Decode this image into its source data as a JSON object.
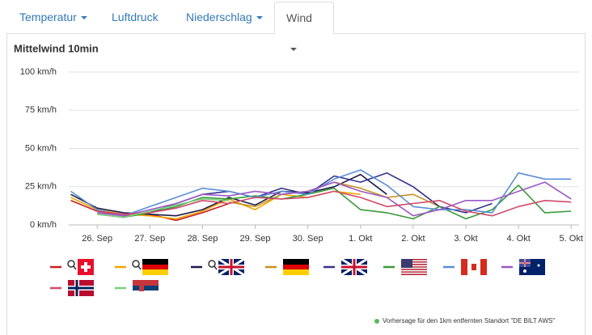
{
  "tabs": [
    "Temperatur",
    "Luftdruck",
    "Niederschlag",
    "Wind"
  ],
  "chart_data": {
    "type": "line",
    "title": "Mittelwind 10min",
    "note": "Vorhersage für den 1km entfernten Standort \"DE BILT AWS\"",
    "x": [
      -0.5,
      0,
      0.5,
      1,
      1.5,
      2,
      2.5,
      3,
      3.5,
      4,
      4.5,
      5,
      5.5,
      6,
      6.5,
      7,
      7.5,
      8,
      8.5,
      9
    ],
    "xlim": [
      -0.54,
      9.15
    ],
    "xticks": [
      {
        "value": 0,
        "label": "26. Sep"
      },
      {
        "value": 1,
        "label": "27. Sep"
      },
      {
        "value": 2,
        "label": "28. Sep"
      },
      {
        "value": 3,
        "label": "29. Sep"
      },
      {
        "value": 4,
        "label": "30. Sep"
      },
      {
        "value": 5,
        "label": "1. Okt"
      },
      {
        "value": 6,
        "label": "2. Okt"
      },
      {
        "value": 7,
        "label": "3. Okt"
      },
      {
        "value": 8,
        "label": "4. Okt"
      },
      {
        "value": 9,
        "label": "5. Okt"
      }
    ],
    "ylim": [
      0,
      100
    ],
    "yticks": [
      {
        "value": 0,
        "label": "0 km/h"
      },
      {
        "value": 25,
        "label": "25 km/h"
      },
      {
        "value": 50,
        "label": "50 km/h"
      },
      {
        "value": 75,
        "label": "75 km/h"
      },
      {
        "value": 100,
        "label": "100 km/h"
      }
    ],
    "grid": true,
    "series": [
      {
        "color": "#cc1f1f",
        "values": [
          16,
          9,
          6,
          7,
          3,
          8,
          14,
          null,
          null,
          null,
          null,
          null,
          null,
          null,
          null,
          null,
          null,
          null,
          null,
          null
        ]
      },
      {
        "color": "#f0a500",
        "values": [
          18,
          10,
          7,
          6,
          4,
          9,
          17,
          10,
          20,
          18,
          22,
          20,
          null,
          null,
          null,
          null,
          null,
          null,
          null,
          null
        ]
      },
      {
        "color": "#1c1c4a",
        "values": [
          20,
          11,
          8,
          7,
          6,
          10,
          18,
          13,
          22,
          21,
          25,
          33,
          20,
          null,
          null,
          null,
          null,
          null,
          null,
          null
        ]
      },
      {
        "color": "#c8901e",
        "values": [
          null,
          null,
          null,
          null,
          null,
          null,
          15,
          12,
          20,
          22,
          28,
          24,
          18,
          20,
          12,
          null,
          null,
          null,
          null,
          null
        ]
      },
      {
        "color": "#33338f",
        "values": [
          null,
          null,
          null,
          8,
          14,
          20,
          22,
          18,
          24,
          20,
          32,
          28,
          34,
          25,
          12,
          8,
          14,
          null,
          null,
          null
        ]
      },
      {
        "color": "#3a9a3a",
        "values": [
          null,
          7,
          5,
          8,
          12,
          18,
          17,
          19,
          17,
          20,
          24,
          10,
          8,
          4,
          12,
          4,
          10,
          26,
          8,
          9
        ]
      },
      {
        "color": "#5b8fd6",
        "values": [
          22,
          10,
          6,
          12,
          18,
          24,
          22,
          18,
          22,
          20,
          30,
          36,
          26,
          12,
          10,
          10,
          8,
          34,
          30,
          30
        ]
      },
      {
        "color": "#9b59c6",
        "values": [
          null,
          8,
          6,
          10,
          14,
          20,
          19,
          22,
          20,
          22,
          28,
          22,
          18,
          6,
          10,
          16,
          16,
          22,
          28,
          17
        ]
      },
      {
        "color": "#d04a6a",
        "values": [
          null,
          9,
          7,
          8,
          11,
          16,
          14,
          18,
          17,
          18,
          22,
          18,
          12,
          14,
          16,
          9,
          6,
          12,
          16,
          15
        ]
      },
      {
        "color": "#7ccf7c",
        "values": [
          null,
          7,
          5,
          9,
          13,
          17,
          16,
          null,
          null,
          null,
          null,
          null,
          null,
          null,
          null,
          null,
          null,
          null,
          null,
          null
        ]
      }
    ]
  }
}
